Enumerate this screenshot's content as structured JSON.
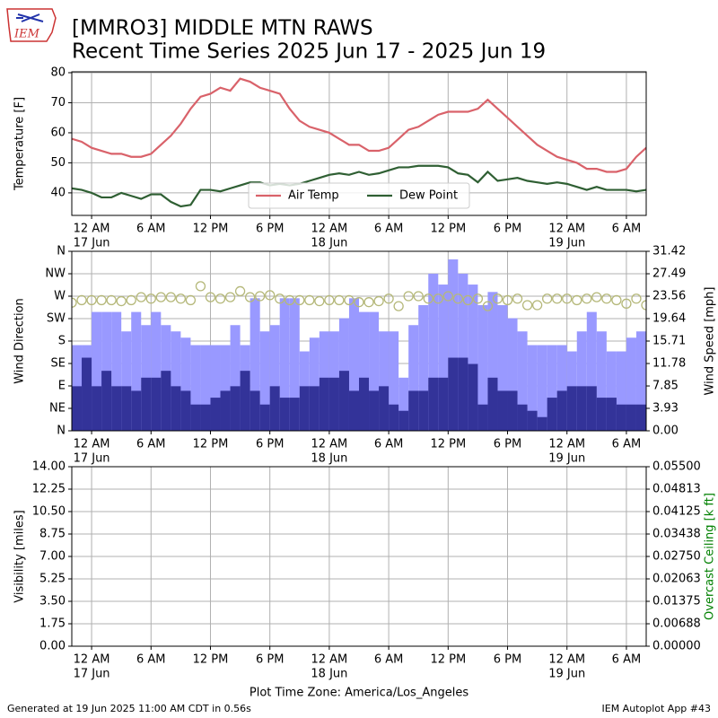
{
  "title": "[MMRO3] MIDDLE MTN RAWS",
  "subtitle": "Recent Time Series 2025 Jun 17 - 2025 Jun 19",
  "logo_text": "IEM",
  "xlabel": "Plot Time Zone: America/Los_Angeles",
  "footer_left": "Generated at 19 Jun 2025 11:00 AM CDT in 0.56s",
  "footer_right": "IEM Autoplot App #43",
  "chart_data": [
    {
      "type": "line",
      "ylabel": "Temperature [F]",
      "grid": true,
      "legend": "lower center",
      "xlim": [
        "2025-06-16T22:00",
        "2025-06-19T08:00"
      ],
      "xticks": [
        {
          "value": "2025-06-17T00:00",
          "label": "12 AM",
          "sublabel": "17 Jun"
        },
        {
          "value": "2025-06-17T06:00",
          "label": "6 AM"
        },
        {
          "value": "2025-06-17T12:00",
          "label": "12 PM"
        },
        {
          "value": "2025-06-17T18:00",
          "label": "6 PM"
        },
        {
          "value": "2025-06-18T00:00",
          "label": "12 AM",
          "sublabel": "18 Jun"
        },
        {
          "value": "2025-06-18T06:00",
          "label": "6 AM"
        },
        {
          "value": "2025-06-18T12:00",
          "label": "12 PM"
        },
        {
          "value": "2025-06-18T18:00",
          "label": "6 PM"
        },
        {
          "value": "2025-06-19T00:00",
          "label": "12 AM",
          "sublabel": "19 Jun"
        },
        {
          "value": "2025-06-19T06:00",
          "label": "6 AM"
        }
      ],
      "ylim": [
        32.5,
        80.3
      ],
      "yticks": [
        40,
        50,
        60,
        70,
        80
      ],
      "x": [
        "2025-06-16T22:00",
        "2025-06-16T23:00",
        "2025-06-17T00:00",
        "2025-06-17T01:00",
        "2025-06-17T02:00",
        "2025-06-17T03:00",
        "2025-06-17T04:00",
        "2025-06-17T05:00",
        "2025-06-17T06:00",
        "2025-06-17T07:00",
        "2025-06-17T08:00",
        "2025-06-17T09:00",
        "2025-06-17T10:00",
        "2025-06-17T11:00",
        "2025-06-17T12:00",
        "2025-06-17T13:00",
        "2025-06-17T14:00",
        "2025-06-17T15:00",
        "2025-06-17T16:00",
        "2025-06-17T17:00",
        "2025-06-17T18:00",
        "2025-06-17T19:00",
        "2025-06-17T20:00",
        "2025-06-17T21:00",
        "2025-06-17T22:00",
        "2025-06-17T23:00",
        "2025-06-18T00:00",
        "2025-06-18T01:00",
        "2025-06-18T02:00",
        "2025-06-18T03:00",
        "2025-06-18T04:00",
        "2025-06-18T05:00",
        "2025-06-18T06:00",
        "2025-06-18T07:00",
        "2025-06-18T08:00",
        "2025-06-18T09:00",
        "2025-06-18T10:00",
        "2025-06-18T11:00",
        "2025-06-18T12:00",
        "2025-06-18T13:00",
        "2025-06-18T14:00",
        "2025-06-18T15:00",
        "2025-06-18T16:00",
        "2025-06-18T17:00",
        "2025-06-18T18:00",
        "2025-06-18T19:00",
        "2025-06-18T20:00",
        "2025-06-18T21:00",
        "2025-06-18T22:00",
        "2025-06-18T23:00",
        "2025-06-19T00:00",
        "2025-06-19T01:00",
        "2025-06-19T02:00",
        "2025-06-19T03:00",
        "2025-06-19T04:00",
        "2025-06-19T05:00",
        "2025-06-19T06:00",
        "2025-06-19T07:00",
        "2025-06-19T08:00"
      ],
      "series": [
        {
          "name": "Air Temp",
          "color": "#d9626a",
          "values": [
            58,
            57,
            55,
            54,
            53,
            53,
            52,
            52,
            53,
            56,
            59,
            63,
            68,
            72,
            73,
            75,
            74,
            78,
            77,
            75,
            74,
            73,
            68,
            64,
            62,
            61,
            60,
            58,
            56,
            56,
            54,
            54,
            55,
            58,
            61,
            62,
            64,
            66,
            67,
            67,
            67,
            68,
            71,
            68,
            65,
            62,
            59,
            56,
            54,
            52,
            51,
            50,
            48,
            48,
            47,
            47,
            48,
            52,
            55
          ]
        },
        {
          "name": "Dew Point",
          "color": "#2f5f33",
          "values": [
            41.5,
            41,
            40,
            38.5,
            38.5,
            40,
            39,
            38,
            39.5,
            39.5,
            37,
            35.5,
            36,
            41,
            41,
            40.5,
            41.5,
            42.5,
            43.5,
            43.5,
            42.5,
            43,
            42.5,
            43,
            44,
            45,
            46,
            46.5,
            46,
            47,
            46,
            46.5,
            47.5,
            48.5,
            48.5,
            49,
            49,
            49,
            48.5,
            46.5,
            46,
            43.5,
            47,
            44,
            44.5,
            45,
            44,
            43.5,
            43,
            43.5,
            43,
            42,
            41,
            42,
            41,
            41,
            41,
            40.5,
            41
          ]
        }
      ]
    },
    {
      "type": "combo",
      "ylabel": "Wind Direction",
      "y2label": "Wind Speed [mph]",
      "grid": true,
      "xlim": [
        "2025-06-16T22:00",
        "2025-06-19T08:00"
      ],
      "xticks": [
        {
          "value": "2025-06-17T00:00",
          "label": "12 AM",
          "sublabel": "17 Jun"
        },
        {
          "value": "2025-06-17T06:00",
          "label": "6 AM"
        },
        {
          "value": "2025-06-17T12:00",
          "label": "12 PM"
        },
        {
          "value": "2025-06-17T18:00",
          "label": "6 PM"
        },
        {
          "value": "2025-06-18T00:00",
          "label": "12 AM",
          "sublabel": "18 Jun"
        },
        {
          "value": "2025-06-18T06:00",
          "label": "6 AM"
        },
        {
          "value": "2025-06-18T12:00",
          "label": "12 PM"
        },
        {
          "value": "2025-06-18T18:00",
          "label": "6 PM"
        },
        {
          "value": "2025-06-19T00:00",
          "label": "12 AM",
          "sublabel": "19 Jun"
        },
        {
          "value": "2025-06-19T06:00",
          "label": "6 AM"
        }
      ],
      "ylim": [
        0,
        360
      ],
      "yticks": [
        {
          "value": 0,
          "label": "N"
        },
        {
          "value": 45,
          "label": "NE"
        },
        {
          "value": 90,
          "label": "E"
        },
        {
          "value": 135,
          "label": "SE"
        },
        {
          "value": 180,
          "label": "S"
        },
        {
          "value": 225,
          "label": "SW"
        },
        {
          "value": 270,
          "label": "W"
        },
        {
          "value": 315,
          "label": "NW"
        },
        {
          "value": 360,
          "label": "N"
        }
      ],
      "y2lim": [
        0,
        31.42
      ],
      "y2ticks": [
        {
          "value": 0,
          "label": "0.00"
        },
        3.93,
        7.85,
        11.78,
        15.71,
        19.64,
        23.56,
        27.49,
        31.42
      ],
      "x": [
        "2025-06-16T22:00",
        "2025-06-16T23:00",
        "2025-06-17T00:00",
        "2025-06-17T01:00",
        "2025-06-17T02:00",
        "2025-06-17T03:00",
        "2025-06-17T04:00",
        "2025-06-17T05:00",
        "2025-06-17T06:00",
        "2025-06-17T07:00",
        "2025-06-17T08:00",
        "2025-06-17T09:00",
        "2025-06-17T10:00",
        "2025-06-17T11:00",
        "2025-06-17T12:00",
        "2025-06-17T13:00",
        "2025-06-17T14:00",
        "2025-06-17T15:00",
        "2025-06-17T16:00",
        "2025-06-17T17:00",
        "2025-06-17T18:00",
        "2025-06-17T19:00",
        "2025-06-17T20:00",
        "2025-06-17T21:00",
        "2025-06-17T22:00",
        "2025-06-17T23:00",
        "2025-06-18T00:00",
        "2025-06-18T01:00",
        "2025-06-18T02:00",
        "2025-06-18T03:00",
        "2025-06-18T04:00",
        "2025-06-18T05:00",
        "2025-06-18T06:00",
        "2025-06-18T07:00",
        "2025-06-18T08:00",
        "2025-06-18T09:00",
        "2025-06-18T10:00",
        "2025-06-18T11:00",
        "2025-06-18T12:00",
        "2025-06-18T13:00",
        "2025-06-18T14:00",
        "2025-06-18T15:00",
        "2025-06-18T16:00",
        "2025-06-18T17:00",
        "2025-06-18T18:00",
        "2025-06-18T19:00",
        "2025-06-18T20:00",
        "2025-06-18T21:00",
        "2025-06-18T22:00",
        "2025-06-18T23:00",
        "2025-06-19T00:00",
        "2025-06-19T01:00",
        "2025-06-19T02:00",
        "2025-06-19T03:00",
        "2025-06-19T04:00",
        "2025-06-19T05:00",
        "2025-06-19T06:00",
        "2025-06-19T07:00",
        "2025-06-19T08:00"
      ],
      "series": [
        {
          "type": "bar",
          "axis": "y2",
          "color": "#9999ff",
          "values": [
            15,
            15,
            20.8,
            20.8,
            20.8,
            17.4,
            20.8,
            18.5,
            20.8,
            18.5,
            17.4,
            16.3,
            15,
            15,
            15,
            15,
            18.5,
            15,
            23.2,
            17.4,
            18.5,
            23.2,
            23.2,
            13.9,
            16.3,
            17.4,
            17.4,
            19.7,
            23.2,
            20.8,
            20.8,
            17.4,
            17.4,
            9.3,
            18.5,
            22,
            27.5,
            25.6,
            30,
            27.5,
            25.6,
            22,
            24.3,
            22,
            19.7,
            17.4,
            15,
            15,
            15,
            15,
            13.9,
            17.4,
            20.8,
            17.4,
            13.9,
            13.9,
            16.3,
            17.4,
            17.4
          ]
        },
        {
          "type": "bar",
          "axis": "y2",
          "color": "#333399",
          "values": [
            7.8,
            12.8,
            7.8,
            10.5,
            7.8,
            7.8,
            7,
            9.3,
            9.3,
            10.5,
            7.8,
            7,
            4.6,
            4.6,
            5.8,
            7,
            7.8,
            10.5,
            7,
            4.6,
            7.8,
            5.8,
            5.8,
            7.8,
            7.8,
            9.3,
            9.3,
            10.5,
            7,
            9.3,
            7,
            7.8,
            4.6,
            3.5,
            7,
            7,
            9.3,
            9.3,
            12.8,
            12.8,
            11.7,
            4.6,
            9.3,
            7,
            7,
            4.6,
            3.5,
            2.4,
            5.8,
            7,
            7.8,
            7.8,
            7.8,
            5.8,
            5.8,
            4.6,
            4.6,
            4.6,
            4.6
          ]
        },
        {
          "type": "scatter",
          "axis": "y",
          "color": "#b5b87a",
          "values": [
            257,
            262,
            262,
            262,
            262,
            260,
            262,
            268,
            265,
            268,
            268,
            265,
            262,
            290,
            268,
            265,
            268,
            280,
            268,
            270,
            272,
            265,
            262,
            262,
            262,
            260,
            262,
            262,
            262,
            258,
            258,
            260,
            265,
            250,
            270,
            270,
            265,
            265,
            270,
            265,
            262,
            265,
            250,
            265,
            262,
            265,
            252,
            252,
            265,
            265,
            265,
            262,
            265,
            268,
            265,
            262,
            255,
            265,
            252
          ]
        }
      ]
    },
    {
      "type": "line",
      "ylabel": "Visibility [miles]",
      "y2label": "Overcast Ceiling [k ft]",
      "y2label_color": "#008000",
      "grid": true,
      "xlim": [
        "2025-06-16T22:00",
        "2025-06-19T08:00"
      ],
      "xticks": [
        {
          "value": "2025-06-17T00:00",
          "label": "12 AM",
          "sublabel": "17 Jun"
        },
        {
          "value": "2025-06-17T06:00",
          "label": "6 AM"
        },
        {
          "value": "2025-06-17T12:00",
          "label": "12 PM"
        },
        {
          "value": "2025-06-17T18:00",
          "label": "6 PM"
        },
        {
          "value": "2025-06-18T00:00",
          "label": "12 AM",
          "sublabel": "18 Jun"
        },
        {
          "value": "2025-06-18T06:00",
          "label": "6 AM"
        },
        {
          "value": "2025-06-18T12:00",
          "label": "12 PM"
        },
        {
          "value": "2025-06-18T18:00",
          "label": "6 PM"
        },
        {
          "value": "2025-06-19T00:00",
          "label": "12 AM",
          "sublabel": "19 Jun"
        },
        {
          "value": "2025-06-19T06:00",
          "label": "6 AM"
        }
      ],
      "ylim": [
        0,
        14
      ],
      "yticks": [
        {
          "value": 0,
          "label": "0.00"
        },
        1.75,
        {
          "value": 3.5,
          "label": "3.50"
        },
        5.25,
        {
          "value": 7,
          "label": "7.00"
        },
        8.75,
        {
          "value": 10.5,
          "label": "10.50"
        },
        12.25,
        {
          "value": 14,
          "label": "14.00"
        }
      ],
      "y2lim": [
        0,
        0.055
      ],
      "y2ticks": [
        {
          "value": 0,
          "label": "0.00000"
        },
        {
          "value": 0.006875,
          "label": "0.00688"
        },
        {
          "value": 0.01375,
          "label": "0.01375"
        },
        {
          "value": 0.020625,
          "label": "0.02063"
        },
        {
          "value": 0.0275,
          "label": "0.02750"
        },
        {
          "value": 0.034375,
          "label": "0.03438"
        },
        {
          "value": 0.04125,
          "label": "0.04125"
        },
        {
          "value": 0.048125,
          "label": "0.04813"
        },
        {
          "value": 0.055,
          "label": "0.05500"
        }
      ],
      "series": []
    }
  ]
}
